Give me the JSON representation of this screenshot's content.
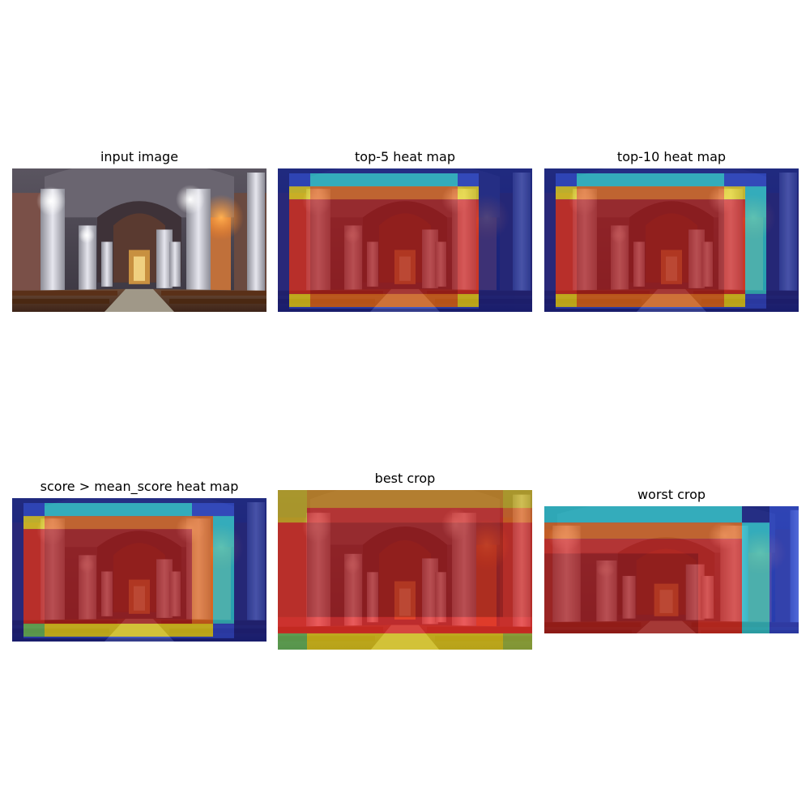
{
  "panels": {
    "input": {
      "title": "input image"
    },
    "top5": {
      "title": "top-5 heat map"
    },
    "top10": {
      "title": "top-10 heat map"
    },
    "mean": {
      "title": "score > mean_score heat map"
    },
    "best": {
      "title": "best crop"
    },
    "worst": {
      "title": "worst crop"
    }
  },
  "palette": {
    "navy": "#0b1a8c",
    "blue": "#1f3fd6",
    "cyan": "#20c8d8",
    "yellow": "#e6d31a",
    "orange": "#e0641a",
    "red": "#d0231f",
    "deep_red": "#8c0c12"
  }
}
